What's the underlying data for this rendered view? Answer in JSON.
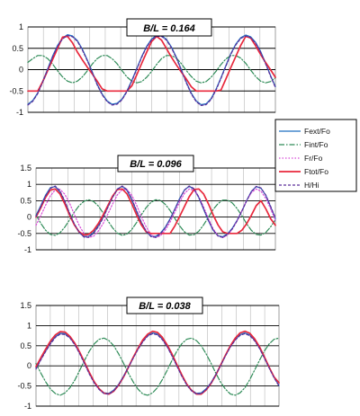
{
  "colors": {
    "Fext/Fo": "#1f6fc0",
    "Fint/Fo": "#2e8b57",
    "Fr/Fo": "#d84bd8",
    "Ftot/Fo": "#e8283c",
    "H/Hi": "#5b2d9a"
  },
  "legend": {
    "placement": "right",
    "entries": [
      {
        "label": "Fext/Fo",
        "color": "#1f6fc0",
        "dash": ""
      },
      {
        "label": "Fint/Fo",
        "color": "#2e8b57",
        "dash": "6,2,1.5,2"
      },
      {
        "label": "Fr/Fo",
        "color": "#d84bd8",
        "dash": "1.5,2"
      },
      {
        "label": "Ftot/Fo",
        "color": "#e8283c",
        "dash": ""
      },
      {
        "label": "H/Hi",
        "color": "#5b2d9a",
        "dash": "3,2"
      }
    ]
  },
  "chart_data": [
    {
      "type": "line",
      "annotation": "B/L = 0.164",
      "grid": true,
      "ylim": [
        -1,
        1
      ],
      "yticks": [
        "1",
        "0.5",
        "0",
        "-0.5",
        "-1"
      ],
      "x": [
        0,
        0.05,
        0.1,
        0.15,
        0.2,
        0.25,
        0.3,
        0.35,
        0.4,
        0.45,
        0.5,
        0.55,
        0.6,
        0.65,
        0.7,
        0.75,
        0.8,
        0.85,
        0.9,
        0.95,
        1,
        1.05,
        1.1,
        1.15,
        1.2,
        1.25,
        1.3,
        1.35,
        1.4,
        1.45,
        1.5,
        1.55,
        1.6,
        1.65,
        1.7,
        1.75,
        1.8,
        1.85,
        1.9,
        1.95,
        2,
        2.05,
        2.1,
        2.15,
        2.2,
        2.25,
        2.3,
        2.35,
        2.4,
        2.45,
        2.5
      ],
      "series": [
        {
          "name": "Fext/Fo",
          "values": [
            -0.81,
            -0.72,
            -0.54,
            -0.27,
            0.02,
            0.32,
            0.57,
            0.74,
            0.82,
            0.79,
            0.68,
            0.48,
            0.23,
            -0.05,
            -0.34,
            -0.57,
            -0.73,
            -0.81,
            -0.79,
            -0.69,
            -0.5,
            -0.25,
            0.03,
            0.31,
            0.55,
            0.72,
            0.8,
            0.8,
            0.71,
            0.53,
            0.29,
            0,
            -0.29,
            -0.55,
            -0.73,
            -0.82,
            -0.8,
            -0.68,
            -0.46,
            -0.19,
            0.1,
            0.38,
            0.6,
            0.75,
            0.81,
            0.77,
            0.64,
            0.43,
            0.16,
            -0.13,
            -0.4
          ]
        },
        {
          "name": "Fint/Fo",
          "values": [
            0.17,
            0.26,
            0.33,
            0.33,
            0.26,
            0.13,
            -0.03,
            -0.17,
            -0.27,
            -0.31,
            -0.27,
            -0.17,
            -0.03,
            0.13,
            0.26,
            0.33,
            0.33,
            0.26,
            0.14,
            -0.02,
            -0.17,
            -0.27,
            -0.31,
            -0.28,
            -0.18,
            -0.04,
            0.12,
            0.26,
            0.33,
            0.33,
            0.27,
            0.14,
            -0.02,
            -0.16,
            -0.27,
            -0.31,
            -0.28,
            -0.18,
            -0.04,
            0.12,
            0.25,
            0.33,
            0.33,
            0.27,
            0.15,
            -0.01,
            -0.16,
            -0.27,
            -0.31,
            -0.28,
            -0.19
          ]
        },
        {
          "name": "Ftot/Fo",
          "values": [
            -0.5,
            -0.5,
            -0.5,
            -0.28,
            -0.02,
            0.24,
            0.5,
            0.76,
            0.78,
            0.63,
            0.41,
            0.23,
            0.06,
            -0.1,
            -0.27,
            -0.45,
            -0.5,
            -0.5,
            -0.5,
            -0.5,
            -0.5,
            -0.38,
            -0.12,
            0.15,
            0.41,
            0.66,
            0.78,
            0.69,
            0.49,
            0.29,
            0.11,
            -0.06,
            -0.22,
            -0.4,
            -0.5,
            -0.5,
            -0.5,
            -0.5,
            -0.5,
            -0.48,
            -0.22,
            0.05,
            0.31,
            0.57,
            0.78,
            0.74,
            0.56,
            0.36,
            0.17,
            0,
            -0.18
          ]
        },
        {
          "name": "H/Hi",
          "values": [
            -0.83,
            -0.74,
            -0.56,
            -0.29,
            0,
            0.3,
            0.55,
            0.72,
            0.8,
            0.77,
            0.66,
            0.46,
            0.21,
            -0.07,
            -0.36,
            -0.59,
            -0.75,
            -0.83,
            -0.81,
            -0.71,
            -0.52,
            -0.27,
            0.01,
            0.29,
            0.53,
            0.7,
            0.78,
            0.78,
            0.69,
            0.51,
            0.27,
            -0.02,
            -0.31,
            -0.57,
            -0.75,
            -0.84,
            -0.82,
            -0.7,
            -0.48,
            -0.21,
            0.08,
            0.36,
            0.58,
            0.73,
            0.79,
            0.75,
            0.62,
            0.41,
            0.14,
            -0.15,
            -0.42
          ]
        }
      ]
    },
    {
      "type": "line",
      "annotation": "B/L = 0.096",
      "grid": true,
      "ylim": [
        -1,
        1.5
      ],
      "yticks": [
        "1.5",
        "1",
        "0.5",
        "0",
        "-0.5",
        "-1"
      ],
      "x": [
        0,
        0.05,
        0.1,
        0.15,
        0.2,
        0.25,
        0.3,
        0.35,
        0.4,
        0.45,
        0.5,
        0.55,
        0.6,
        0.65,
        0.7,
        0.75,
        0.8,
        0.85,
        0.9,
        0.95,
        1,
        1.05,
        1.1,
        1.15,
        1.2,
        1.25,
        1.3,
        1.35,
        1.4,
        1.45,
        1.5,
        1.55,
        1.6,
        1.65,
        1.7,
        1.75,
        1.8,
        1.85,
        1.9,
        1.95,
        2,
        2.05,
        2.1,
        2.15,
        2.2,
        2.25,
        2.3,
        2.35,
        2.4,
        2.45,
        2.5
      ],
      "series": [
        {
          "name": "Fext/Fo",
          "values": [
            0.05,
            0.35,
            0.67,
            0.9,
            0.93,
            0.77,
            0.47,
            0.11,
            -0.22,
            -0.47,
            -0.6,
            -0.59,
            -0.47,
            -0.26,
            0,
            0.31,
            0.62,
            0.86,
            0.94,
            0.81,
            0.53,
            0.17,
            -0.17,
            -0.44,
            -0.58,
            -0.59,
            -0.49,
            -0.31,
            -0.05,
            0.25,
            0.57,
            0.83,
            0.94,
            0.85,
            0.59,
            0.24,
            -0.11,
            -0.4,
            -0.57,
            -0.6,
            -0.51,
            -0.34,
            -0.1,
            0.19,
            0.51,
            0.79,
            0.93,
            0.88,
            0.66,
            0.31,
            -0.05
          ]
        },
        {
          "name": "Fint/Fo",
          "values": [
            0.06,
            -0.19,
            -0.4,
            -0.53,
            -0.56,
            -0.48,
            -0.31,
            -0.09,
            0.15,
            0.35,
            0.48,
            0.53,
            0.48,
            0.34,
            0.13,
            -0.11,
            -0.33,
            -0.49,
            -0.56,
            -0.52,
            -0.38,
            -0.17,
            0.07,
            0.29,
            0.45,
            0.53,
            0.51,
            0.39,
            0.2,
            -0.04,
            -0.27,
            -0.45,
            -0.55,
            -0.54,
            -0.43,
            -0.24,
            -0.01,
            0.23,
            0.41,
            0.52,
            0.52,
            0.43,
            0.26,
            0.04,
            -0.21,
            -0.41,
            -0.53,
            -0.55,
            -0.47,
            -0.3,
            -0.08
          ]
        },
        {
          "name": "Fr/Fo",
          "values": [
            -0.25,
            0.04,
            0.36,
            0.65,
            0.83,
            0.85,
            0.7,
            0.43,
            0.08,
            -0.25,
            -0.5,
            -0.62,
            -0.59,
            -0.43,
            -0.2,
            0.09,
            0.4,
            0.68,
            0.84,
            0.84,
            0.67,
            0.37,
            0.02,
            -0.3,
            -0.53,
            -0.63,
            -0.57,
            -0.4,
            -0.15,
            0.15,
            0.46,
            0.72,
            0.86,
            0.82,
            0.62,
            0.31,
            -0.04,
            -0.36,
            -0.57,
            -0.63,
            -0.55,
            -0.37,
            -0.11,
            0.2,
            0.51,
            0.75,
            0.86,
            0.79,
            0.57,
            0.25,
            -0.1
          ]
        },
        {
          "name": "Ftot/Fo",
          "values": [
            0,
            0.28,
            0.6,
            0.83,
            0.86,
            0.71,
            0.41,
            0.07,
            -0.24,
            -0.45,
            -0.55,
            -0.53,
            -0.41,
            -0.2,
            0.06,
            0.35,
            0.64,
            0.84,
            0.86,
            0.71,
            0.41,
            0.07,
            -0.24,
            -0.45,
            -0.5,
            -0.5,
            -0.5,
            -0.5,
            -0.5,
            -0.27,
            0.02,
            0.32,
            0.62,
            0.84,
            0.86,
            0.71,
            0.41,
            0.07,
            -0.24,
            -0.45,
            -0.5,
            -0.5,
            -0.5,
            -0.4,
            -0.2,
            0.06,
            0.35,
            0.5,
            0.25,
            -0.05,
            -0.25
          ]
        },
        {
          "name": "H/Hi",
          "values": [
            0.02,
            0.32,
            0.64,
            0.88,
            0.95,
            0.8,
            0.5,
            0.13,
            -0.21,
            -0.46,
            -0.61,
            -0.62,
            -0.5,
            -0.3,
            -0.03,
            0.29,
            0.6,
            0.85,
            0.95,
            0.84,
            0.56,
            0.2,
            -0.15,
            -0.43,
            -0.6,
            -0.62,
            -0.52,
            -0.33,
            -0.07,
            0.24,
            0.55,
            0.82,
            0.95,
            0.87,
            0.61,
            0.26,
            -0.09,
            -0.39,
            -0.58,
            -0.62,
            -0.53,
            -0.36,
            -0.12,
            0.18,
            0.5,
            0.78,
            0.94,
            0.89,
            0.67,
            0.33,
            -0.03
          ]
        }
      ]
    },
    {
      "type": "line",
      "annotation": "B/L = 0.038",
      "grid": true,
      "ylim": [
        -1,
        1.5
      ],
      "yticks": [
        "1.5",
        "1",
        "0.5",
        "0",
        "-0.5",
        "-1"
      ],
      "x": [
        0,
        0.05,
        0.1,
        0.15,
        0.2,
        0.25,
        0.3,
        0.35,
        0.4,
        0.45,
        0.5,
        0.55,
        0.6,
        0.65,
        0.7,
        0.75,
        0.8,
        0.85,
        0.9,
        0.95,
        1,
        1.05,
        1.1,
        1.15,
        1.2,
        1.25,
        1.3,
        1.35,
        1.4,
        1.45,
        1.5,
        1.55,
        1.6,
        1.65,
        1.7,
        1.75,
        1.8,
        1.85,
        1.9,
        1.95,
        2,
        2.05,
        2.1,
        2.15,
        2.2,
        2.25,
        2.3,
        2.35,
        2.4,
        2.45,
        2.5
      ],
      "series": [
        {
          "name": "Fext/Fo",
          "values": [
            -0.05,
            0.17,
            0.38,
            0.58,
            0.73,
            0.81,
            0.8,
            0.7,
            0.54,
            0.32,
            0.07,
            -0.19,
            -0.41,
            -0.57,
            -0.67,
            -0.68,
            -0.6,
            -0.46,
            -0.26,
            -0.03,
            0.21,
            0.43,
            0.62,
            0.76,
            0.82,
            0.79,
            0.67,
            0.49,
            0.26,
            0.01,
            -0.24,
            -0.45,
            -0.6,
            -0.68,
            -0.67,
            -0.57,
            -0.42,
            -0.21,
            0.02,
            0.26,
            0.48,
            0.66,
            0.78,
            0.82,
            0.77,
            0.64,
            0.45,
            0.2,
            -0.05,
            -0.28,
            -0.49
          ]
        },
        {
          "name": "Fint/Fo",
          "values": [
            0.06,
            -0.18,
            -0.4,
            -0.58,
            -0.69,
            -0.73,
            -0.67,
            -0.54,
            -0.35,
            -0.11,
            0.14,
            0.37,
            0.55,
            0.66,
            0.69,
            0.63,
            0.5,
            0.3,
            0.07,
            -0.18,
            -0.4,
            -0.58,
            -0.7,
            -0.73,
            -0.67,
            -0.54,
            -0.34,
            -0.11,
            0.14,
            0.37,
            0.55,
            0.66,
            0.69,
            0.63,
            0.5,
            0.3,
            0.07,
            -0.18,
            -0.41,
            -0.58,
            -0.7,
            -0.73,
            -0.67,
            -0.54,
            -0.34,
            -0.1,
            0.14,
            0.37,
            0.55,
            0.66,
            0.69
          ]
        },
        {
          "name": "Ftot/Fo",
          "values": [
            -0.02,
            0.2,
            0.42,
            0.62,
            0.77,
            0.85,
            0.84,
            0.73,
            0.56,
            0.34,
            0.09,
            -0.17,
            -0.4,
            -0.57,
            -0.68,
            -0.7,
            -0.63,
            -0.48,
            -0.28,
            -0.04,
            0.21,
            0.44,
            0.65,
            0.79,
            0.86,
            0.83,
            0.71,
            0.52,
            0.29,
            0.03,
            -0.22,
            -0.45,
            -0.61,
            -0.7,
            -0.7,
            -0.6,
            -0.44,
            -0.23,
            0.02,
            0.27,
            0.5,
            0.69,
            0.82,
            0.86,
            0.81,
            0.67,
            0.47,
            0.22,
            -0.04,
            -0.28,
            -0.42
          ]
        },
        {
          "name": "H/Hi",
          "values": [
            -0.08,
            0.15,
            0.36,
            0.55,
            0.71,
            0.79,
            0.78,
            0.69,
            0.52,
            0.3,
            0.05,
            -0.21,
            -0.43,
            -0.59,
            -0.69,
            -0.7,
            -0.62,
            -0.47,
            -0.27,
            -0.04,
            0.19,
            0.41,
            0.6,
            0.74,
            0.8,
            0.77,
            0.65,
            0.47,
            0.24,
            -0.01,
            -0.26,
            -0.47,
            -0.62,
            -0.7,
            -0.69,
            -0.59,
            -0.43,
            -0.22,
            0.01,
            0.25,
            0.47,
            0.64,
            0.76,
            0.8,
            0.75,
            0.62,
            0.43,
            0.19,
            -0.06,
            -0.3,
            -0.5
          ]
        }
      ]
    }
  ]
}
